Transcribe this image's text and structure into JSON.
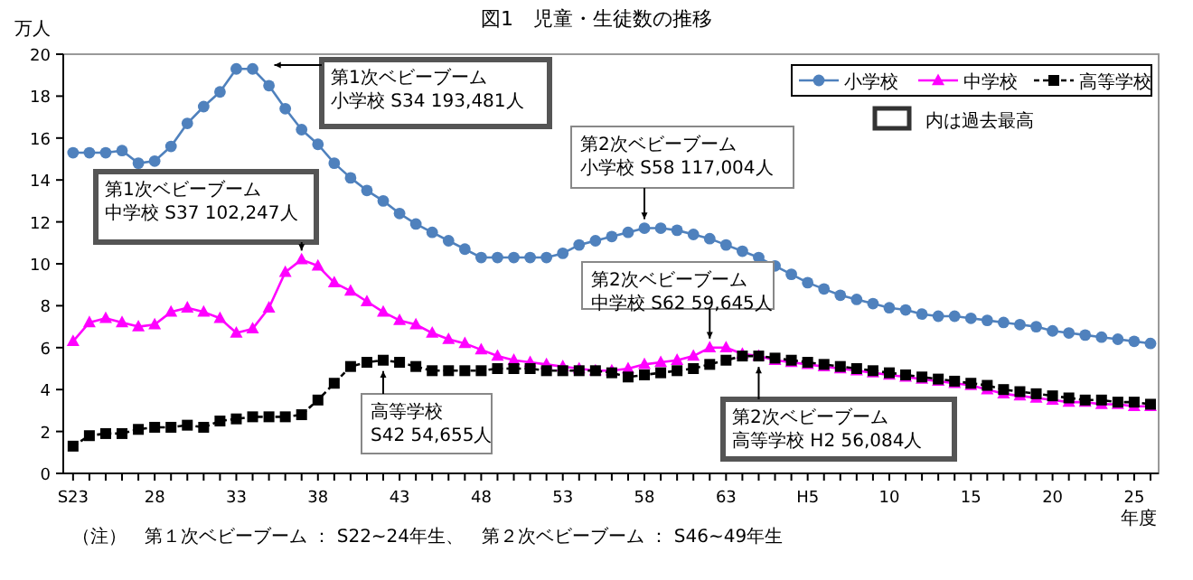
{
  "chart_data": {
    "type": "line",
    "title": "図1　児童・生徒数の推移",
    "xlabel": "年度",
    "ylabel": "万人",
    "categories": [
      "S23",
      null,
      null,
      null,
      null,
      "28",
      null,
      null,
      null,
      null,
      "33",
      null,
      null,
      null,
      null,
      "38",
      null,
      null,
      null,
      null,
      "43",
      null,
      null,
      null,
      null,
      "48",
      null,
      null,
      null,
      null,
      "53",
      null,
      null,
      null,
      null,
      "58",
      null,
      null,
      null,
      null,
      "63",
      null,
      null,
      null,
      null,
      "H5",
      null,
      null,
      null,
      null,
      "10",
      null,
      null,
      null,
      null,
      "15",
      null,
      null,
      null,
      null,
      "20",
      null,
      null,
      null,
      null,
      "25",
      null
    ],
    "ylim": [
      0,
      20
    ],
    "yticks": [
      0,
      2,
      4,
      6,
      8,
      10,
      12,
      14,
      16,
      18,
      20
    ],
    "grid": false,
    "legend": "top right",
    "series": [
      {
        "name": "小学校",
        "color": "#4f81bd",
        "marker": "circle",
        "line_style": "solid",
        "values": [
          15.3,
          15.3,
          15.3,
          15.4,
          14.8,
          14.9,
          15.6,
          16.7,
          17.5,
          18.2,
          19.3,
          19.3,
          18.5,
          17.4,
          16.4,
          15.7,
          14.8,
          14.1,
          13.5,
          13.0,
          12.4,
          11.9,
          11.5,
          11.1,
          10.7,
          10.3,
          10.3,
          10.3,
          10.3,
          10.3,
          10.5,
          10.9,
          11.1,
          11.3,
          11.5,
          11.7,
          11.7,
          11.6,
          11.4,
          11.2,
          10.9,
          10.6,
          10.3,
          9.9,
          9.5,
          9.1,
          8.8,
          8.5,
          8.3,
          8.1,
          7.9,
          7.8,
          7.6,
          7.5,
          7.5,
          7.4,
          7.3,
          7.2,
          7.1,
          7.0,
          6.8,
          6.7,
          6.6,
          6.5,
          6.4,
          6.3,
          6.2
        ]
      },
      {
        "name": "中学校",
        "color": "#ff00ff",
        "marker": "triangle",
        "line_style": "solid",
        "values": [
          6.3,
          7.2,
          7.4,
          7.2,
          7.0,
          7.1,
          7.7,
          7.9,
          7.7,
          7.4,
          6.7,
          6.9,
          7.9,
          9.6,
          10.2,
          9.9,
          9.1,
          8.7,
          8.2,
          7.7,
          7.3,
          7.1,
          6.7,
          6.4,
          6.2,
          5.9,
          5.6,
          5.4,
          5.3,
          5.2,
          5.1,
          5.0,
          4.9,
          4.9,
          5.0,
          5.2,
          5.3,
          5.4,
          5.6,
          6.0,
          6.0,
          5.7,
          5.6,
          5.4,
          5.3,
          5.2,
          5.1,
          5.0,
          4.9,
          4.8,
          4.7,
          4.6,
          4.5,
          4.4,
          4.3,
          4.2,
          4.0,
          3.8,
          3.7,
          3.6,
          3.5,
          3.4,
          3.4,
          3.3,
          3.3,
          3.2,
          3.2
        ]
      },
      {
        "name": "高等学校",
        "color": "#000000",
        "marker": "square",
        "line_style": "dashed",
        "values": [
          1.3,
          1.8,
          1.9,
          1.9,
          2.1,
          2.2,
          2.2,
          2.3,
          2.2,
          2.5,
          2.6,
          2.7,
          2.7,
          2.7,
          2.8,
          3.5,
          4.3,
          5.1,
          5.3,
          5.4,
          5.3,
          5.1,
          4.9,
          4.9,
          4.9,
          4.9,
          5.0,
          5.0,
          5.0,
          4.9,
          4.9,
          4.9,
          4.9,
          4.8,
          4.6,
          4.7,
          4.8,
          4.9,
          5.0,
          5.2,
          5.4,
          5.6,
          5.6,
          5.5,
          5.4,
          5.3,
          5.2,
          5.1,
          5.0,
          4.9,
          4.8,
          4.7,
          4.6,
          4.5,
          4.4,
          4.3,
          4.2,
          4.0,
          3.9,
          3.8,
          3.7,
          3.6,
          3.5,
          3.5,
          3.4,
          3.4,
          3.3
        ]
      }
    ],
    "annotations": [
      "第1次ベビーブーム",
      "小学校 S34 193,481人",
      "第1次ベビーブーム",
      "中学校 S37 102,247人",
      "高等学校",
      "S42  54,655人",
      "第2次ベビーブーム",
      "小学校 S58  117,004人",
      "第2次ベビーブーム",
      "中学校 S62  59,645人",
      "第2次ベビーブーム",
      "高等学校 H2 56,084人",
      "内は過去最高",
      "（注）　第１次ベビーブーム ： S22~24年生、　第２次ベビーブーム ： S46~49年生"
    ]
  }
}
